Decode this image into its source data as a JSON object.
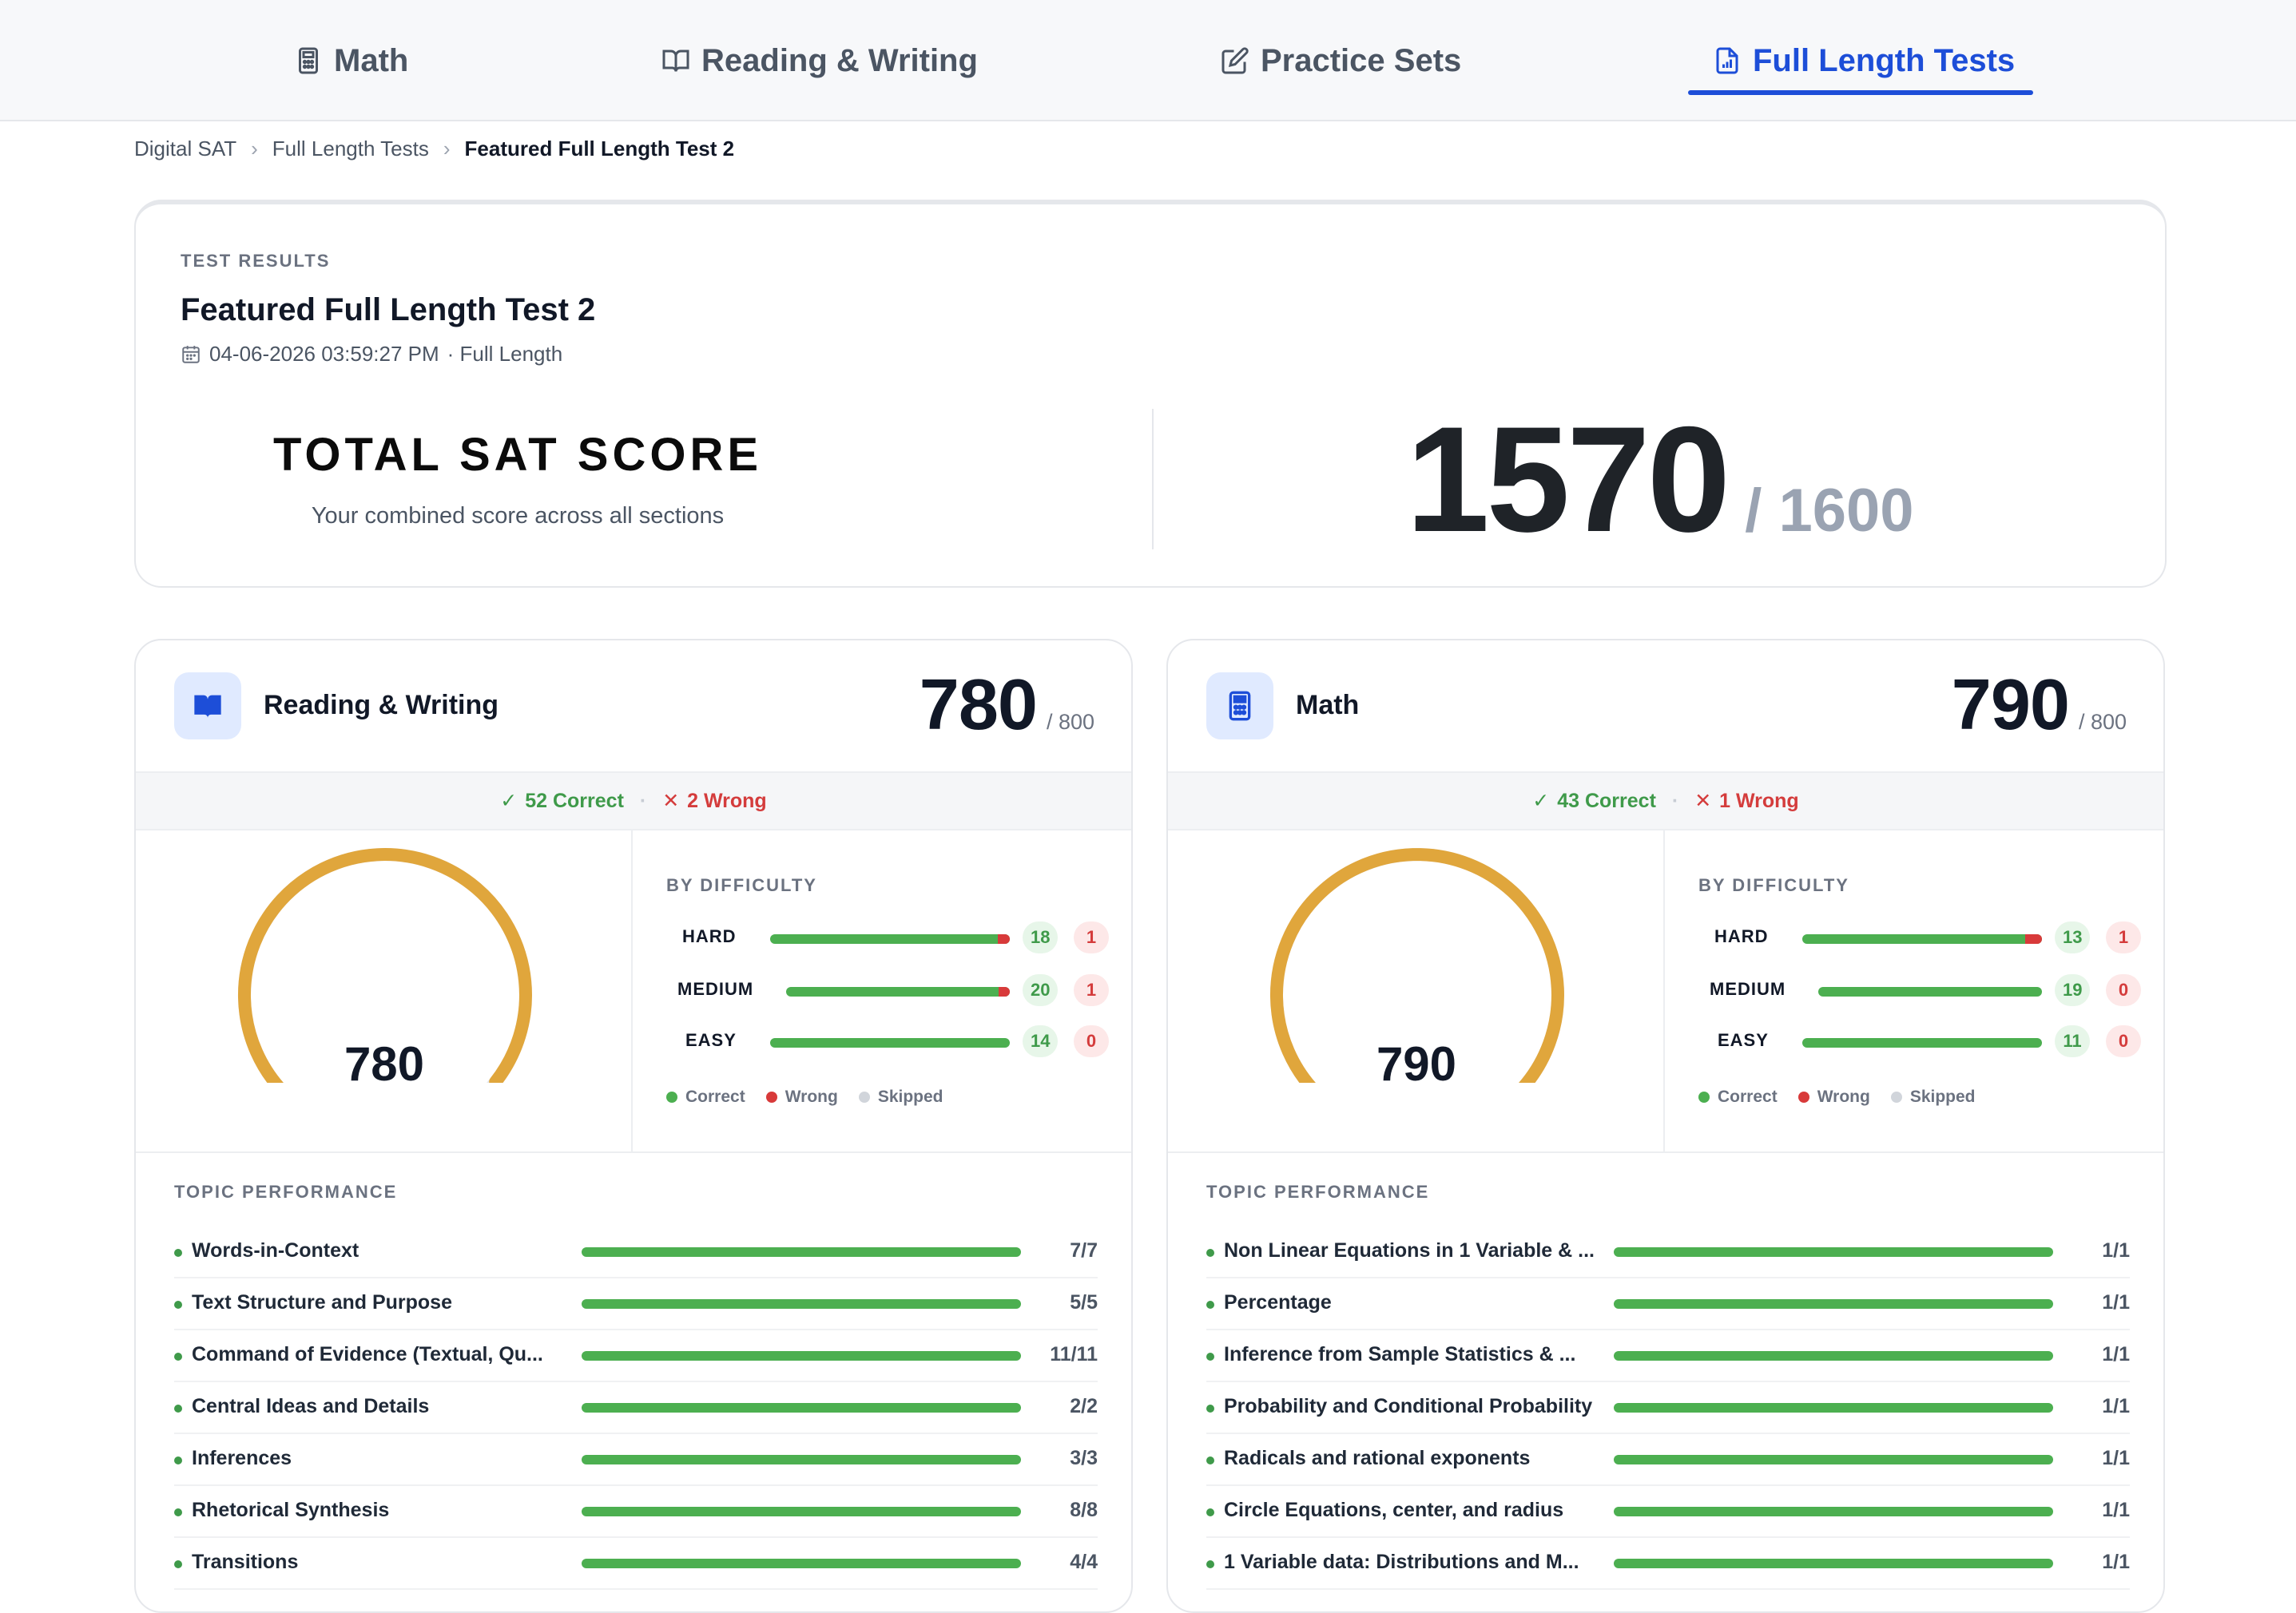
{
  "nav": {
    "tabs": [
      {
        "label": "Math",
        "icon": "calculator-icon"
      },
      {
        "label": "Reading & Writing",
        "icon": "book-open-icon"
      },
      {
        "label": "Practice Sets",
        "icon": "edit-icon"
      },
      {
        "label": "Full Length Tests",
        "icon": "chart-file-icon",
        "active": true
      }
    ]
  },
  "breadcrumb": [
    "Digital SAT",
    "Full Length Tests",
    "Featured Full Length Test 2"
  ],
  "results": {
    "eyebrow": "TEST RESULTS",
    "title": "Featured Full Length Test 2",
    "date": "04-06-2026 03:59:27 PM",
    "type": "· Full Length",
    "total_label": "TOTAL SAT SCORE",
    "total_sub": "Your combined score across all sections",
    "total_value": "1570",
    "total_max": "/ 1600"
  },
  "colors": {
    "accent": "#1d4ed8",
    "correct": "#4caf50",
    "wrong": "#d83a3a",
    "skipped": "#d1d5db",
    "gauge": "#e0a63c"
  },
  "sections": [
    {
      "name": "Reading & Writing",
      "score": "780",
      "max": "/ 800",
      "correct": "52 Correct",
      "wrong": "2 Wrong",
      "gauge_value": "780",
      "gauge_fraction": 0.975,
      "difficulty_label": "BY DIFFICULTY",
      "difficulty": [
        {
          "label": "HARD",
          "correct": "18",
          "wrong": "1",
          "wrong_fraction": 0.05
        },
        {
          "label": "MEDIUM",
          "correct": "20",
          "wrong": "1",
          "wrong_fraction": 0.05
        },
        {
          "label": "EASY",
          "correct": "14",
          "wrong": "0",
          "wrong_fraction": 0
        }
      ],
      "legend": [
        "Correct",
        "Wrong",
        "Skipped"
      ],
      "topic_label": "TOPIC PERFORMANCE",
      "topics": [
        {
          "name": "Words-in-Context",
          "score": "7/7"
        },
        {
          "name": "Text Structure and Purpose",
          "score": "5/5"
        },
        {
          "name": "Command of Evidence (Textual, Qu...",
          "score": "11/11"
        },
        {
          "name": "Central Ideas and Details",
          "score": "2/2"
        },
        {
          "name": "Inferences",
          "score": "3/3"
        },
        {
          "name": "Rhetorical Synthesis",
          "score": "8/8"
        },
        {
          "name": "Transitions",
          "score": "4/4"
        }
      ]
    },
    {
      "name": "Math",
      "score": "790",
      "max": "/ 800",
      "correct": "43 Correct",
      "wrong": "1 Wrong",
      "gauge_value": "790",
      "gauge_fraction": 0.9875,
      "difficulty_label": "BY DIFFICULTY",
      "difficulty": [
        {
          "label": "HARD",
          "correct": "13",
          "wrong": "1",
          "wrong_fraction": 0.07
        },
        {
          "label": "MEDIUM",
          "correct": "19",
          "wrong": "0",
          "wrong_fraction": 0
        },
        {
          "label": "EASY",
          "correct": "11",
          "wrong": "0",
          "wrong_fraction": 0
        }
      ],
      "legend": [
        "Correct",
        "Wrong",
        "Skipped"
      ],
      "topic_label": "TOPIC PERFORMANCE",
      "topics": [
        {
          "name": "Non Linear Equations in 1 Variable & ...",
          "score": "1/1"
        },
        {
          "name": "Percentage",
          "score": "1/1"
        },
        {
          "name": "Inference from Sample Statistics & ...",
          "score": "1/1"
        },
        {
          "name": "Probability and Conditional Probability",
          "score": "1/1"
        },
        {
          "name": "Radicals and rational exponents",
          "score": "1/1"
        },
        {
          "name": "Circle Equations, center, and radius",
          "score": "1/1"
        },
        {
          "name": "1 Variable data: Distributions and M...",
          "score": "1/1"
        }
      ]
    }
  ]
}
